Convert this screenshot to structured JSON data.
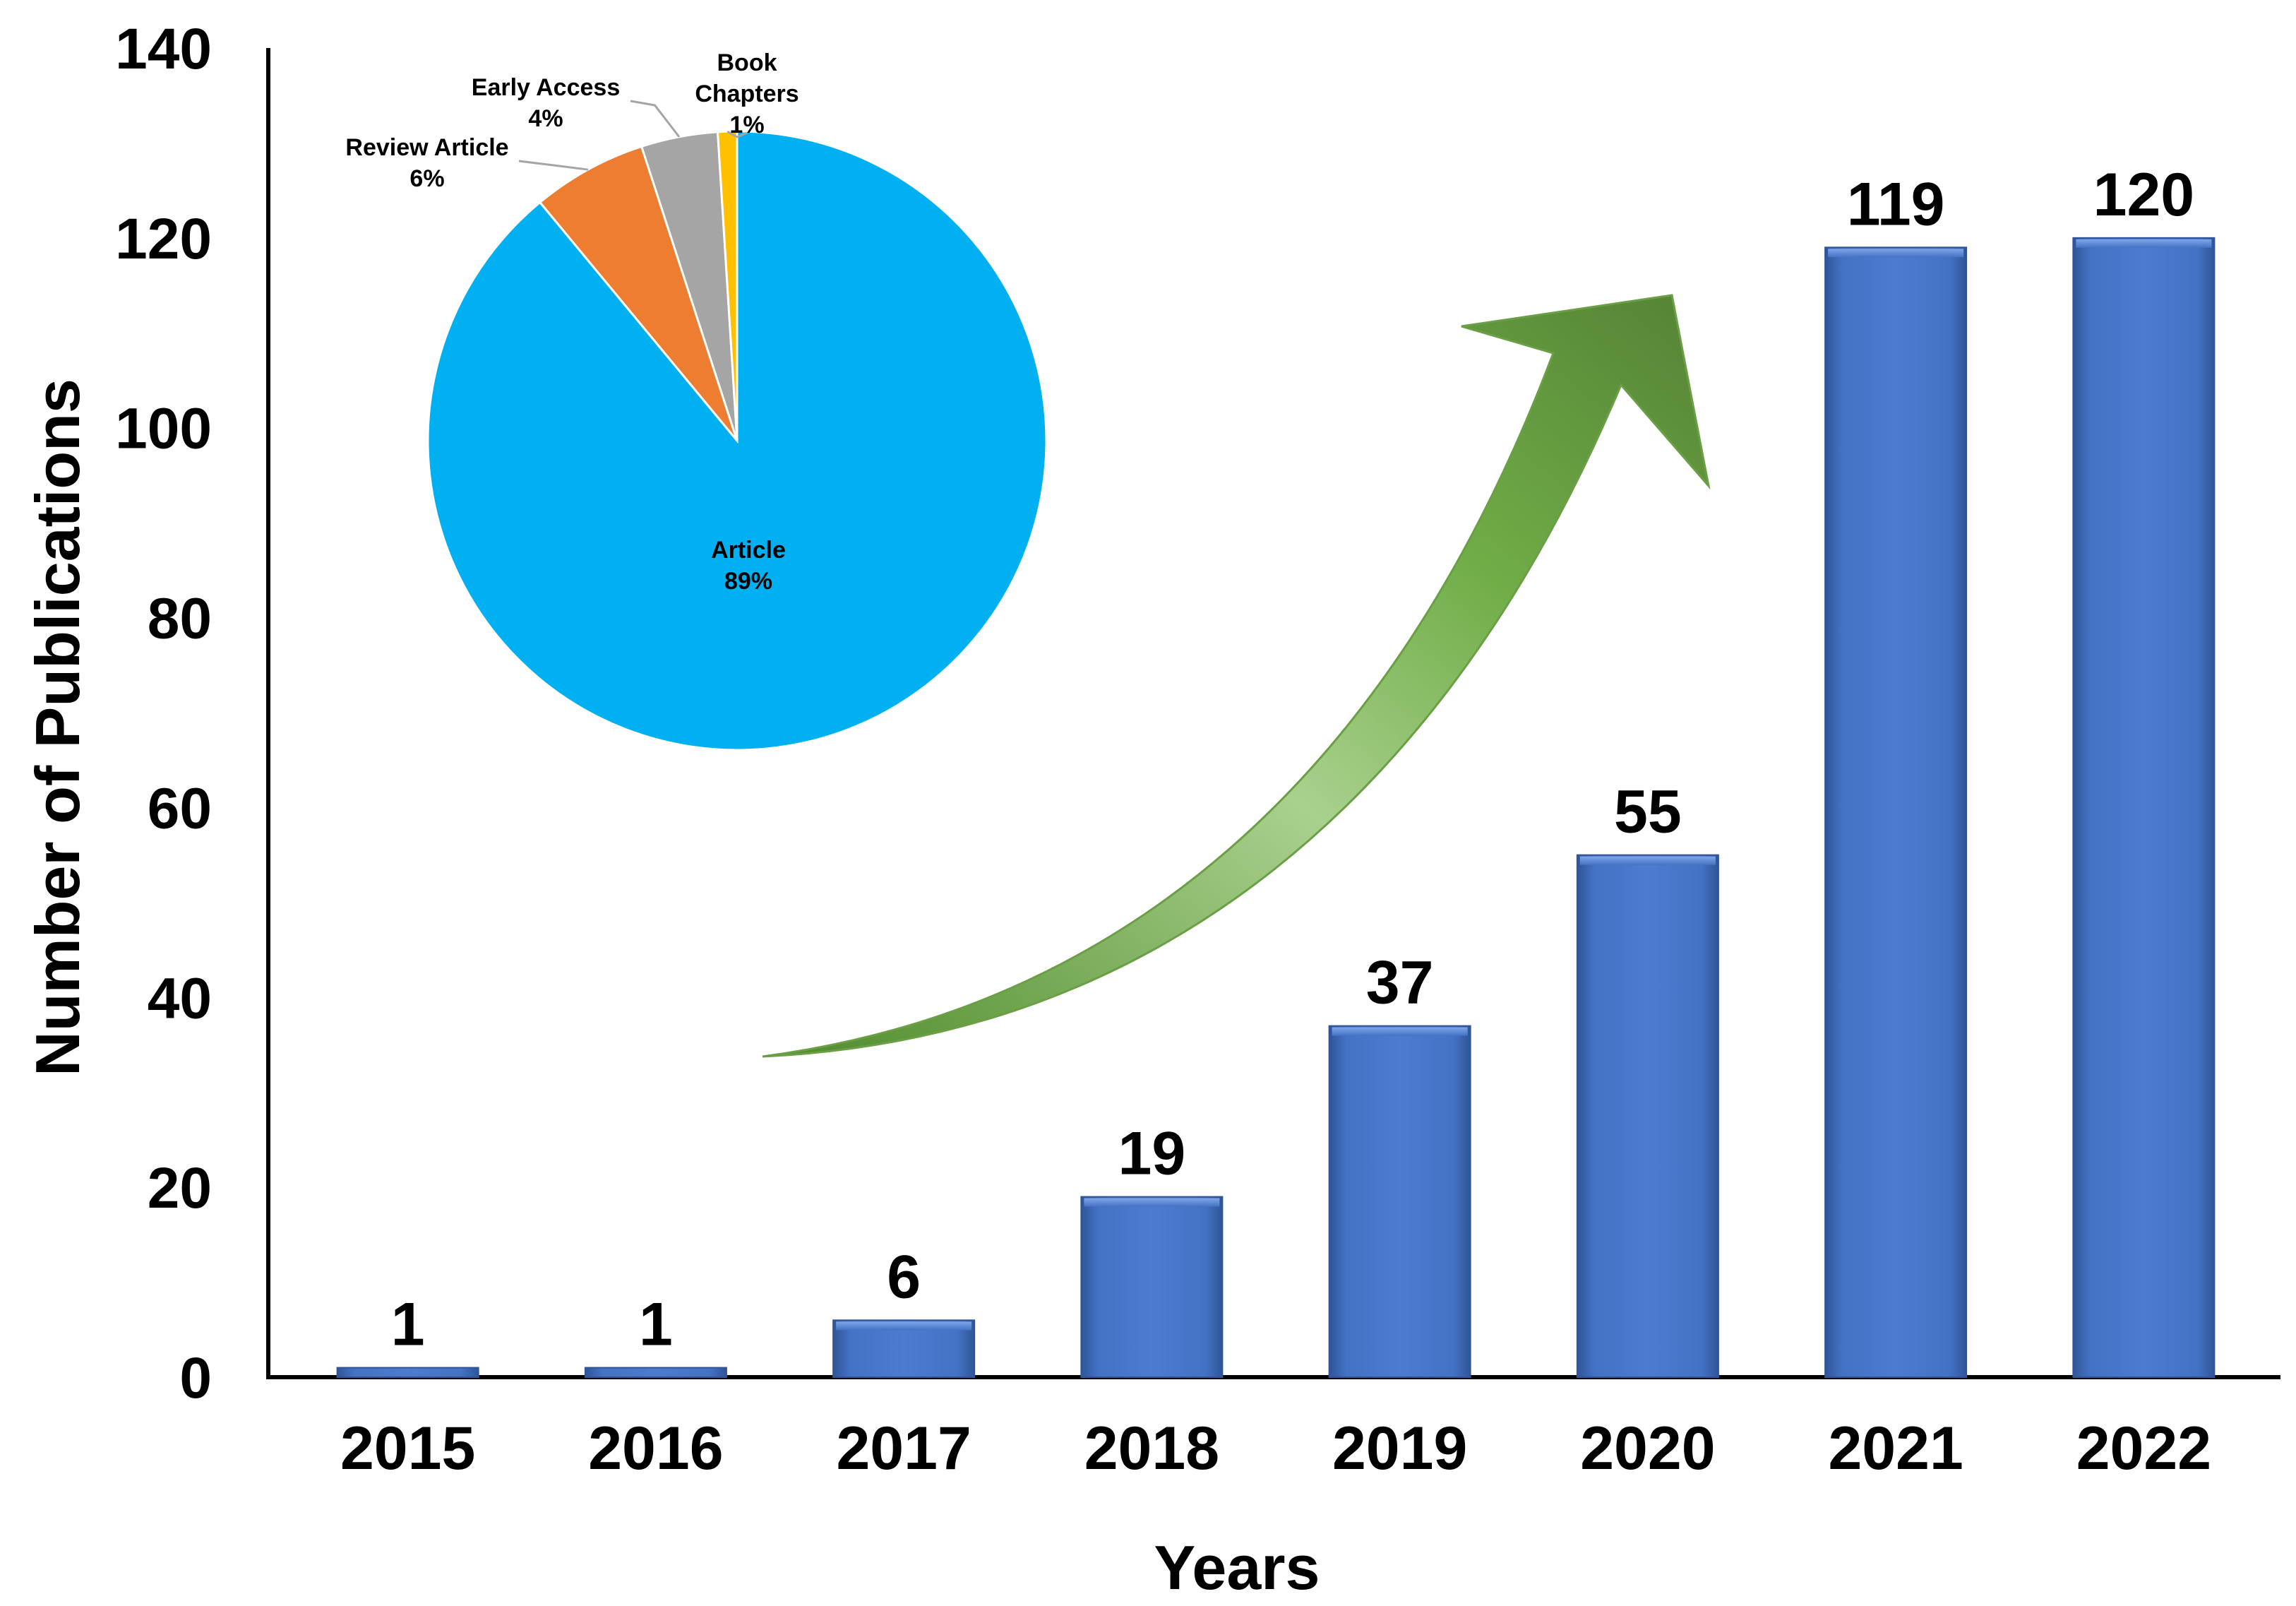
{
  "chart_data": [
    {
      "type": "bar",
      "xlabel": "Years",
      "ylabel": "Number of Publications",
      "ylim": [
        0,
        140
      ],
      "yticks": [
        0,
        20,
        40,
        60,
        80,
        100,
        120,
        140
      ],
      "categories": [
        "2015",
        "2016",
        "2017",
        "2018",
        "2019",
        "2020",
        "2021",
        "2022"
      ],
      "values": [
        1,
        1,
        6,
        19,
        37,
        55,
        119,
        120
      ],
      "data_labels": [
        "1",
        "1",
        "6",
        "19",
        "37",
        "55",
        "119",
        "120"
      ],
      "grid": false,
      "legend": "none",
      "bar_color": "#4472C4",
      "arrow_color": "#70AD47"
    },
    {
      "type": "pie",
      "slices": [
        {
          "label": "Article",
          "pct_text": "89%",
          "value": 89,
          "color": "#00B0F0"
        },
        {
          "label": "Review Article",
          "pct_text": "6%",
          "value": 6,
          "color": "#ED7D31"
        },
        {
          "label": "Early Access",
          "pct_text": "4%",
          "value": 4,
          "color": "#A5A5A5"
        },
        {
          "label": "Book\nChapters",
          "pct_text": "1%",
          "value": 1,
          "color": "#FFC000"
        }
      ]
    }
  ]
}
